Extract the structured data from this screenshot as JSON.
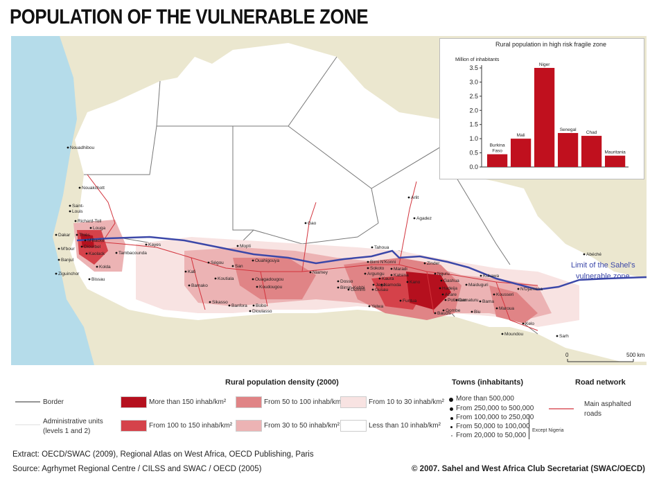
{
  "title": "POPULATION OF THE VULNERABLE ZONE",
  "map": {
    "sahel_limit_label_1": "Limit of the Sahel's",
    "sahel_limit_label_2": "vulnerable zone",
    "scale": {
      "start": "0",
      "end": "500 km"
    },
    "places": [
      {
        "name": "Nouadhibou"
      },
      {
        "name": "Nouakchott"
      },
      {
        "name": "Saint-"
      },
      {
        "name": "Louis"
      },
      {
        "name": "Richard-Toll"
      },
      {
        "name": "Louga"
      },
      {
        "name": "Dakar"
      },
      {
        "name": "Thiès"
      },
      {
        "name": "M'Backé"
      },
      {
        "name": "Diourbel"
      },
      {
        "name": "M'bour"
      },
      {
        "name": "Kaolack"
      },
      {
        "name": "Banjul"
      },
      {
        "name": "Kolda"
      },
      {
        "name": "Ziguinchor"
      },
      {
        "name": "Bissau"
      },
      {
        "name": "Tambacounda"
      },
      {
        "name": "Kayes"
      },
      {
        "name": "Kati"
      },
      {
        "name": "Bamako"
      },
      {
        "name": "Ségou"
      },
      {
        "name": "San"
      },
      {
        "name": "Koutiala"
      },
      {
        "name": "Sikasso"
      },
      {
        "name": "Mopti"
      },
      {
        "name": "Ouahigouya"
      },
      {
        "name": "Ouagadougou"
      },
      {
        "name": "Koudougou"
      },
      {
        "name": "Banfora"
      },
      {
        "name": "Bobo-"
      },
      {
        "name": "Dioulasso"
      },
      {
        "name": "Gao"
      },
      {
        "name": "Niamey"
      },
      {
        "name": "Tahoua"
      },
      {
        "name": "Arlit"
      },
      {
        "name": "Agadez"
      },
      {
        "name": "Birni N'Konni"
      },
      {
        "name": "Maradi"
      },
      {
        "name": "Zinder"
      },
      {
        "name": "Sokoto"
      },
      {
        "name": "Argungu"
      },
      {
        "name": "Dosso"
      },
      {
        "name": "Birnin-Kebbi"
      },
      {
        "name": "Kaura"
      },
      {
        "name": "Namoda"
      },
      {
        "name": "Gusau"
      },
      {
        "name": "Jega"
      },
      {
        "name": "Gummi"
      },
      {
        "name": "Yelwa"
      },
      {
        "name": "Katsina"
      },
      {
        "name": "Kano"
      },
      {
        "name": "Funtua"
      },
      {
        "name": "Nguru"
      },
      {
        "name": "Gashua"
      },
      {
        "name": "Hadeija"
      },
      {
        "name": "Azare"
      },
      {
        "name": "Potiskum"
      },
      {
        "name": "Damaturu"
      },
      {
        "name": "Gombe"
      },
      {
        "name": "Bauchi"
      },
      {
        "name": "Biu"
      },
      {
        "name": "Maiduguri"
      },
      {
        "name": "Bama"
      },
      {
        "name": "Kousseri"
      },
      {
        "name": "N'Djamena"
      },
      {
        "name": "Kukawa"
      },
      {
        "name": "Maroua"
      },
      {
        "name": "Kelo"
      },
      {
        "name": "Moundou"
      },
      {
        "name": "Sarh"
      },
      {
        "name": "Abéché"
      }
    ]
  },
  "chart_data": {
    "type": "bar",
    "title": "Rural population in high risk fragile zone",
    "ylabel": "Million of inhabitants",
    "categories": [
      "Burkina Faso",
      "Mali",
      "Niger",
      "Senegal",
      "Chad",
      "Mauritania"
    ],
    "category_lines": [
      [
        "Burkina",
        "Faso"
      ],
      [
        "Mali"
      ],
      [
        "Niger"
      ],
      [
        "Senegal"
      ],
      [
        "Chad"
      ],
      [
        "Mauritania"
      ]
    ],
    "values": [
      0.45,
      1.0,
      3.5,
      1.2,
      1.1,
      0.4
    ],
    "ylim": [
      0,
      3.5
    ],
    "yticks": [
      "0.0",
      "0.5",
      "1.0",
      "1.5",
      "2.0",
      "2.5",
      "3.0",
      "3.5"
    ],
    "bar_color": "#c0101e"
  },
  "legend": {
    "density_title": "Rural population density (2000)",
    "towns_title": "Towns (inhabitants)",
    "roads_title": "Road network",
    "border_label": "Border",
    "admin_label_1": "Administrative units",
    "admin_label_2": "(levels 1 and 2)",
    "density_classes": [
      {
        "label": "More than 150 inhab/km²",
        "color": "#b5101e"
      },
      {
        "label": "From 100 to 150 inhab/km²",
        "color": "#d5424a"
      },
      {
        "label": "From 50 to 100 inhab/km²",
        "color": "#e08486"
      },
      {
        "label": "From 30 to 50 inhab/km²",
        "color": "#ecb3b4"
      },
      {
        "label": "From 10 to 30 inhab/km²",
        "color": "#f8e3e2"
      },
      {
        "label": "Less than 10 inhab/km²",
        "color": "#ffffff"
      }
    ],
    "town_classes": [
      {
        "label": "More than 500,000"
      },
      {
        "label": "From 250,000 to 500,000"
      },
      {
        "label": "From 100,000 to 250,000"
      },
      {
        "label": "From 50,000 to 100,000"
      },
      {
        "label": "From 20,000 to 50,000"
      }
    ],
    "except_nigeria": "Except Nigeria",
    "road_label_1": "Main asphalted",
    "road_label_2": "roads"
  },
  "footer": {
    "extract": "Extract: OECD/SWAC (2009), Regional Atlas on West Africa, OECD Publishing, Paris",
    "source": "Source: Agrhymet Regional Centre / CILSS and SWAC / OECD (2005)",
    "copyright": "© 2007. Sahel and West Africa Club Secretariat (SWAC/OECD)"
  },
  "colors": {
    "ocean": "#b5dcea",
    "land_outside": "#ebe7cf",
    "land_inside": "#ffffff",
    "sahel_line": "#3b47a8",
    "road": "#d2333c",
    "border": "#777777"
  }
}
